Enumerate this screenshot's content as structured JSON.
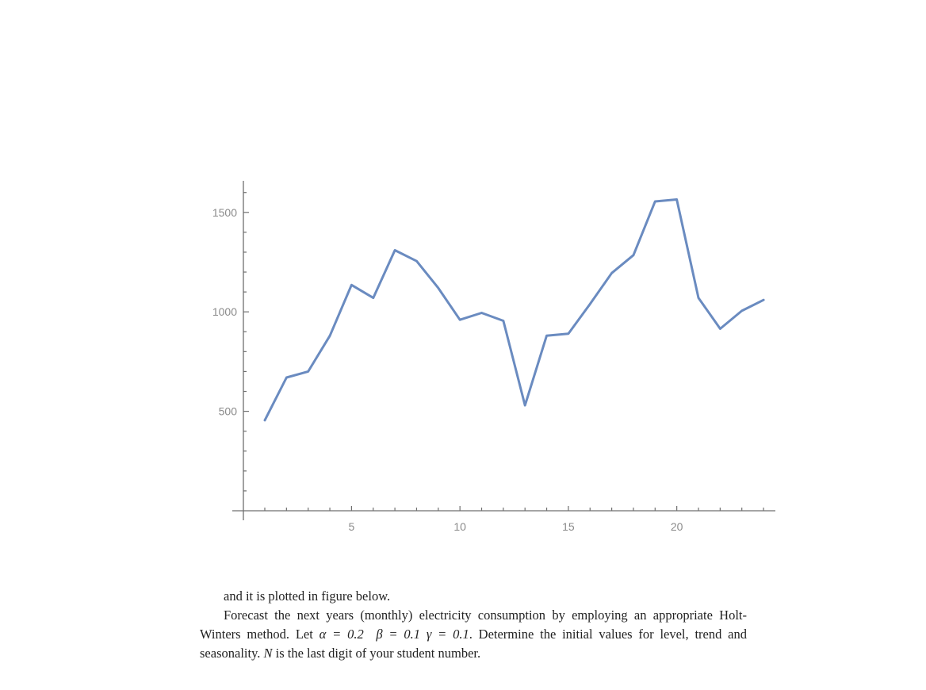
{
  "chart_data": {
    "type": "line",
    "title": "",
    "xlabel": "",
    "ylabel": "",
    "xlim": [
      0.2,
      24.5
    ],
    "ylim": [
      0,
      1650
    ],
    "xticks": [
      5,
      10,
      15,
      20
    ],
    "yticks": [
      500,
      1000,
      1500
    ],
    "x": [
      1,
      2,
      3,
      4,
      5,
      6,
      7,
      8,
      9,
      10,
      11,
      12,
      13,
      14,
      15,
      16,
      17,
      18,
      19,
      20,
      21,
      22,
      23,
      24
    ],
    "series": [
      {
        "name": "",
        "color": "#6a8bc0",
        "values": [
          455,
          670,
          700,
          880,
          1135,
          1070,
          1310,
          1255,
          1120,
          960,
          995,
          955,
          530,
          880,
          890,
          1040,
          1195,
          1285,
          1555,
          1565,
          1070,
          915,
          1005,
          1060
        ]
      }
    ],
    "grid": false,
    "legend": "none"
  },
  "text": {
    "line1": "and it is plotted in figure below.",
    "para2_a": "Forecast the next years (monthly) electricity consumption by employing an appropriate Holt-Winters method. Let ",
    "alpha_eq": "α = 0.2",
    "beta_eq": "β = 0.1",
    "gamma_eq": "γ = 0.1",
    "para2_b": ". Determine the initial values for level, trend and seasonality. ",
    "n_symbol": "N",
    "para2_c": " is the last digit of your student number."
  }
}
